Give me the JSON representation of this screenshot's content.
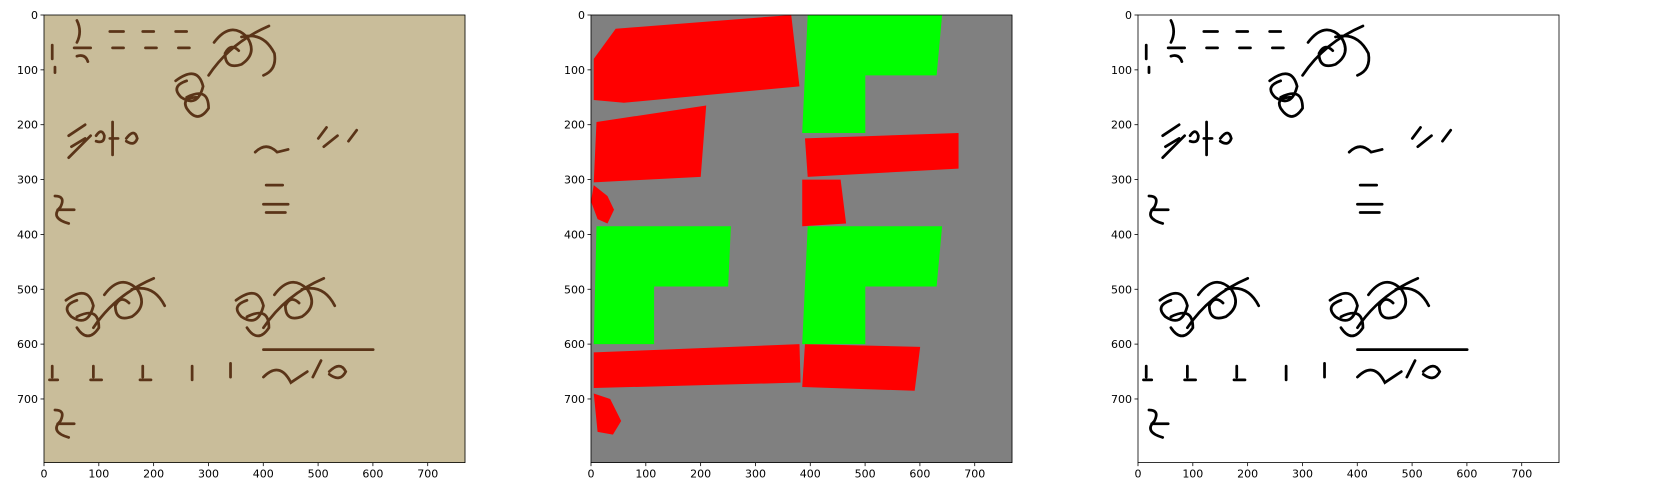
{
  "chart_data": [
    {
      "type": "image",
      "xlim": [
        0,
        768
      ],
      "ylim": [
        816,
        0
      ],
      "xticks": [
        0,
        100,
        200,
        300,
        400,
        500,
        600,
        700
      ],
      "yticks": [
        0,
        100,
        200,
        300,
        400,
        500,
        600,
        700
      ]
    },
    {
      "type": "image",
      "xlim": [
        0,
        768
      ],
      "ylim": [
        816,
        0
      ],
      "xticks": [
        0,
        100,
        200,
        300,
        400,
        500,
        600,
        700
      ],
      "yticks": [
        0,
        100,
        200,
        300,
        400,
        500,
        600,
        700
      ]
    },
    {
      "type": "image",
      "xlim": [
        0,
        768
      ],
      "ylim": [
        816,
        0
      ],
      "xticks": [
        0,
        100,
        200,
        300,
        400,
        500,
        600,
        700
      ],
      "yticks": [
        0,
        100,
        200,
        300,
        400,
        500,
        600,
        700
      ]
    }
  ]
}
